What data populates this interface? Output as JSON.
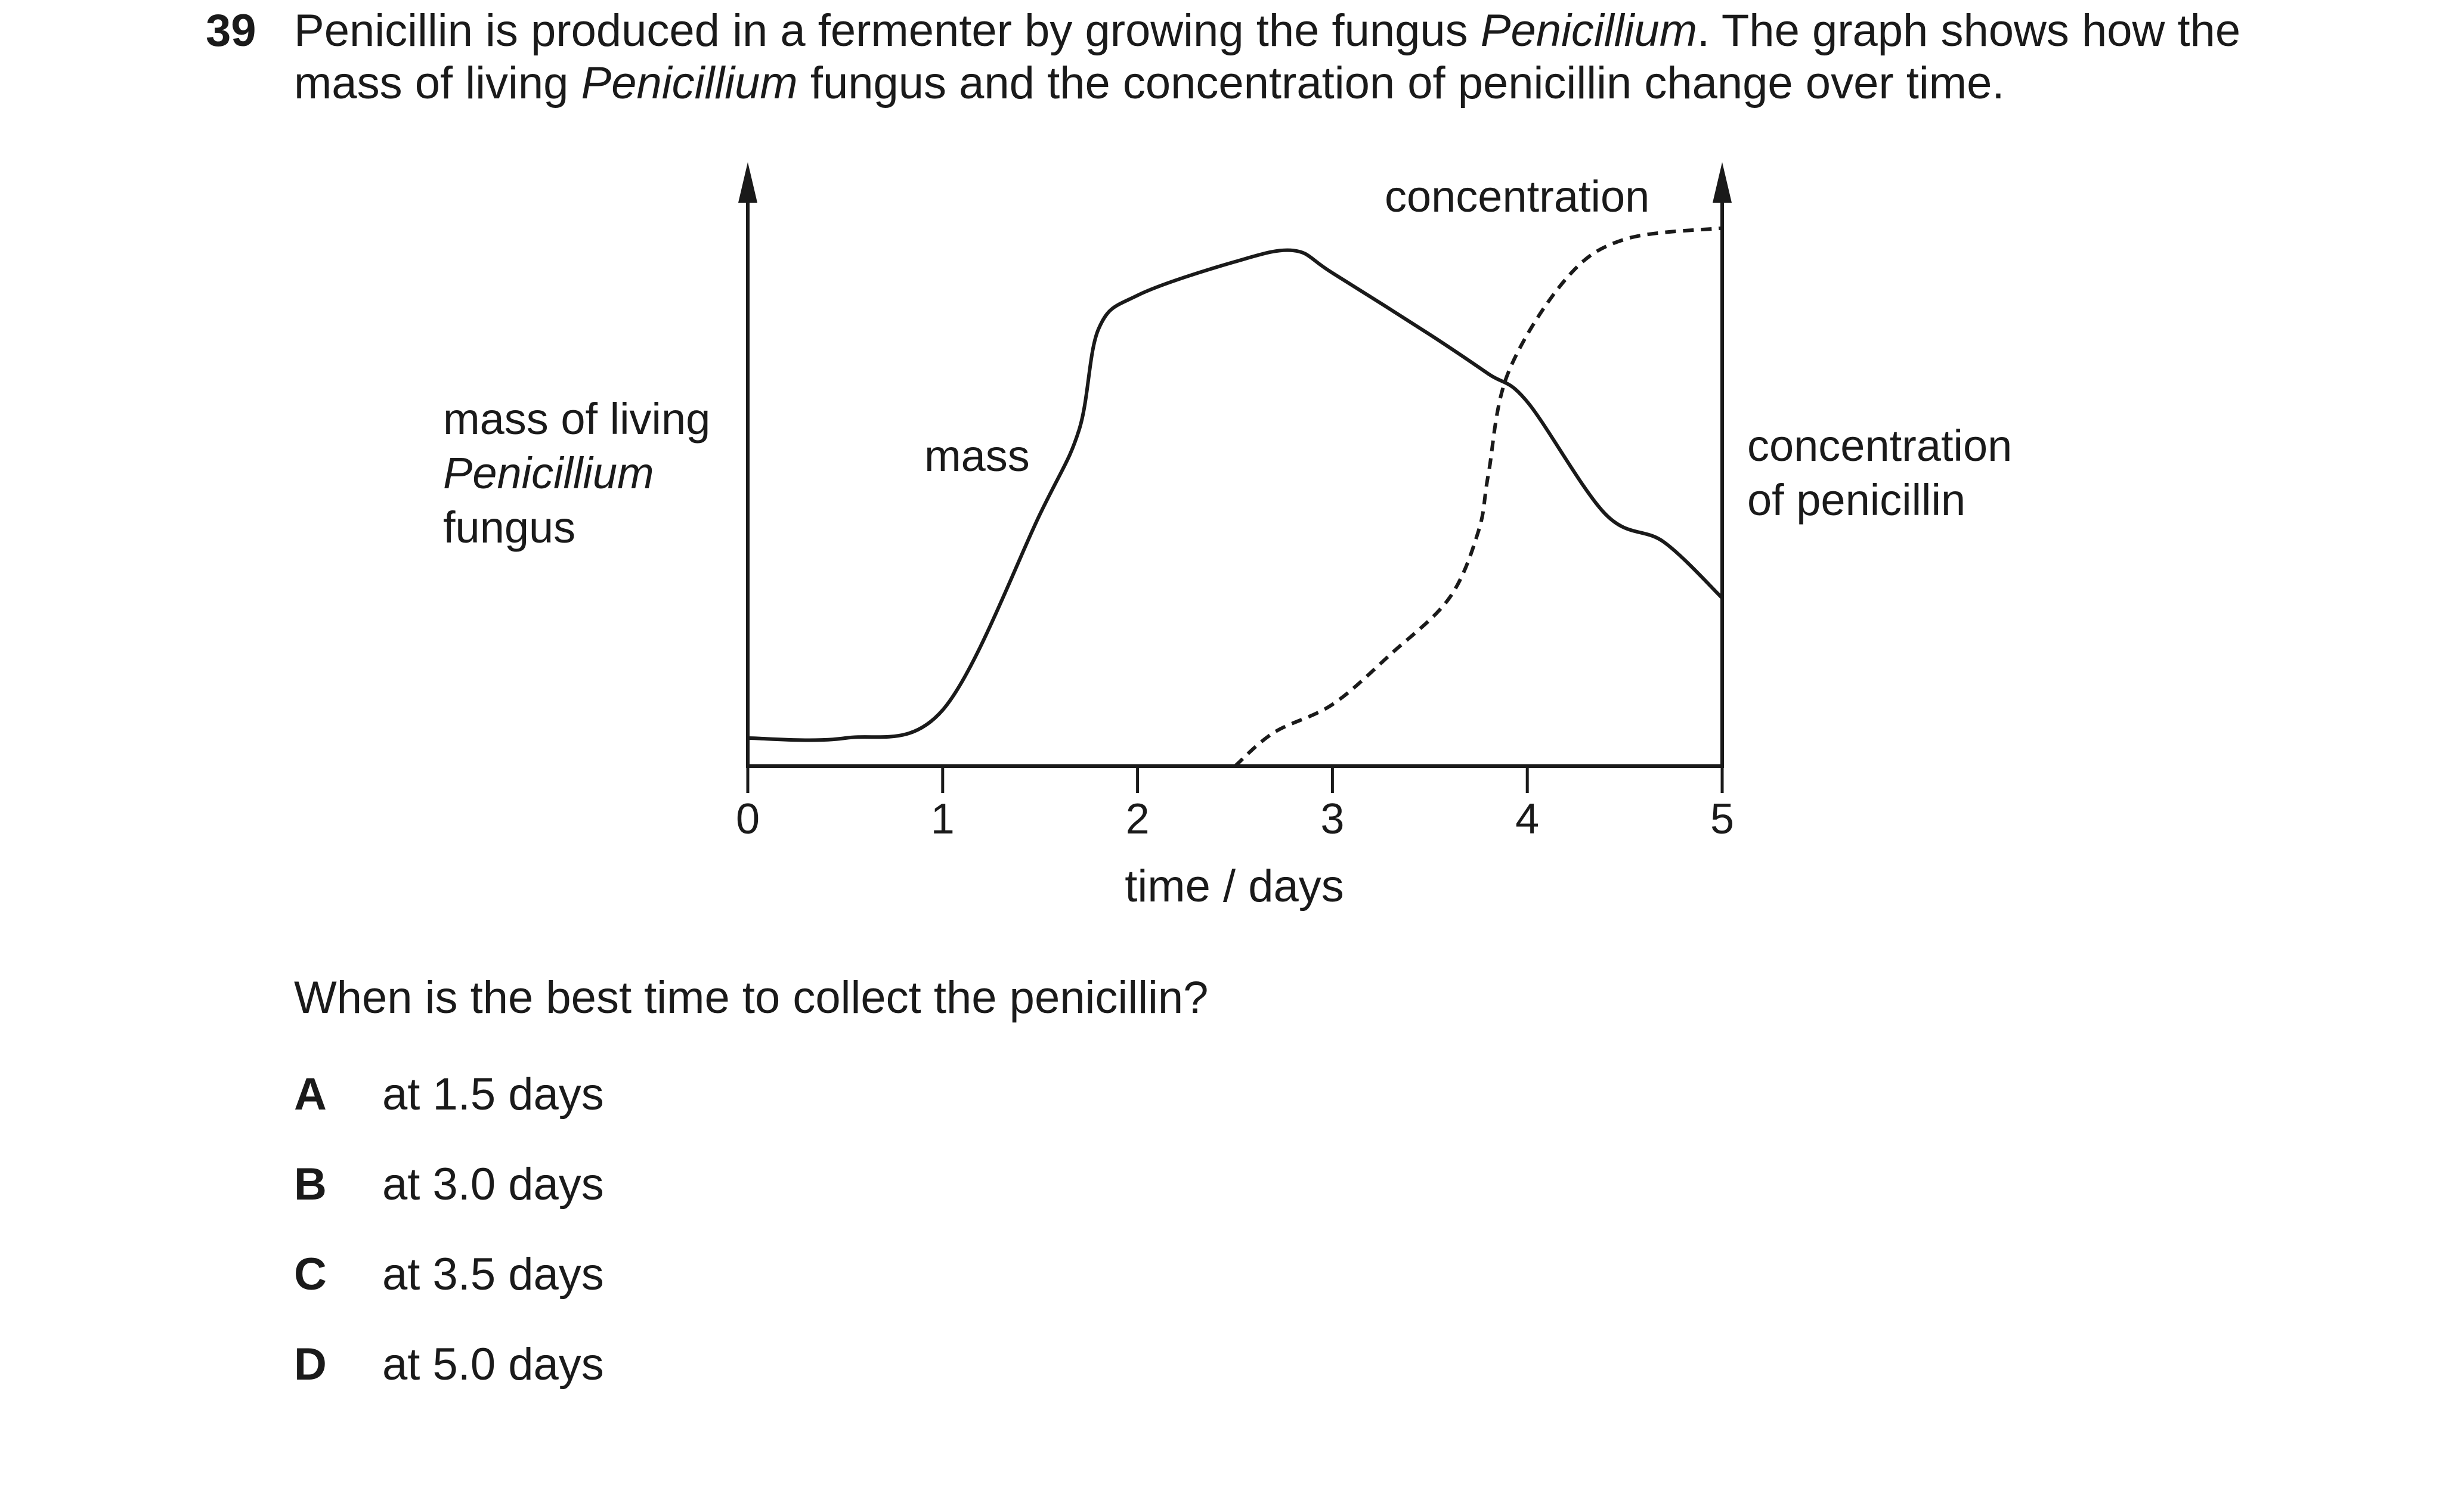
{
  "question": {
    "number": "39",
    "stem_line1_pre": "Penicillin is produced in a fermenter by growing the fungus ",
    "stem_line1_italic": "Penicillium",
    "stem_line1_post": ". The graph shows how the",
    "stem_line2_pre": "mass of living ",
    "stem_line2_italic": "Penicillium",
    "stem_line2_post": " fungus and the concentration of penicillin change over time.",
    "prompt": "When is the best time to collect the penicillin?",
    "options": [
      {
        "letter": "A",
        "text": "at 1.5 days"
      },
      {
        "letter": "B",
        "text": "at 3.0 days"
      },
      {
        "letter": "C",
        "text": "at 3.5 days"
      },
      {
        "letter": "D",
        "text": "at 5.0 days"
      }
    ]
  },
  "graph": {
    "left_axis_label_line1": "mass of living",
    "left_axis_label_line2": "Penicillium",
    "left_axis_label_line3": "fungus",
    "right_axis_label_line1": "concentration",
    "right_axis_label_line2": "of penicillin",
    "x_axis_label": "time / days",
    "mass_curve_label": "mass",
    "concentration_curve_label": "concentration",
    "x_ticks": [
      "0",
      "1",
      "2",
      "3",
      "4",
      "5"
    ]
  },
  "chart_data": {
    "type": "line",
    "xlabel": "time / days",
    "ylabel": "mass of living Penicillium fungus",
    "y2label": "concentration of penicillin",
    "xlim": [
      0,
      5
    ],
    "ylim": [
      0,
      1
    ],
    "x_ticks": [
      0,
      1,
      2,
      3,
      4,
      5
    ],
    "y_axis_numbered": false,
    "series": [
      {
        "name": "mass",
        "style": "solid",
        "axis": "left",
        "x": [
          0,
          0.5,
          1.0,
          1.5,
          1.7,
          1.8,
          2.0,
          2.5,
          2.8,
          3.0,
          3.5,
          3.8,
          4.0,
          4.4,
          4.7,
          5.0
        ],
        "y": [
          0.05,
          0.05,
          0.1,
          0.45,
          0.6,
          0.78,
          0.84,
          0.9,
          0.92,
          0.88,
          0.77,
          0.7,
          0.65,
          0.45,
          0.4,
          0.3
        ]
      },
      {
        "name": "concentration",
        "style": "dashed",
        "axis": "right",
        "x": [
          2.5,
          2.7,
          3.0,
          3.3,
          3.6,
          3.75,
          3.8,
          3.9,
          4.2,
          4.5,
          5.0
        ],
        "y": [
          0.0,
          0.06,
          0.11,
          0.2,
          0.3,
          0.42,
          0.52,
          0.7,
          0.87,
          0.94,
          0.96
        ]
      }
    ]
  }
}
